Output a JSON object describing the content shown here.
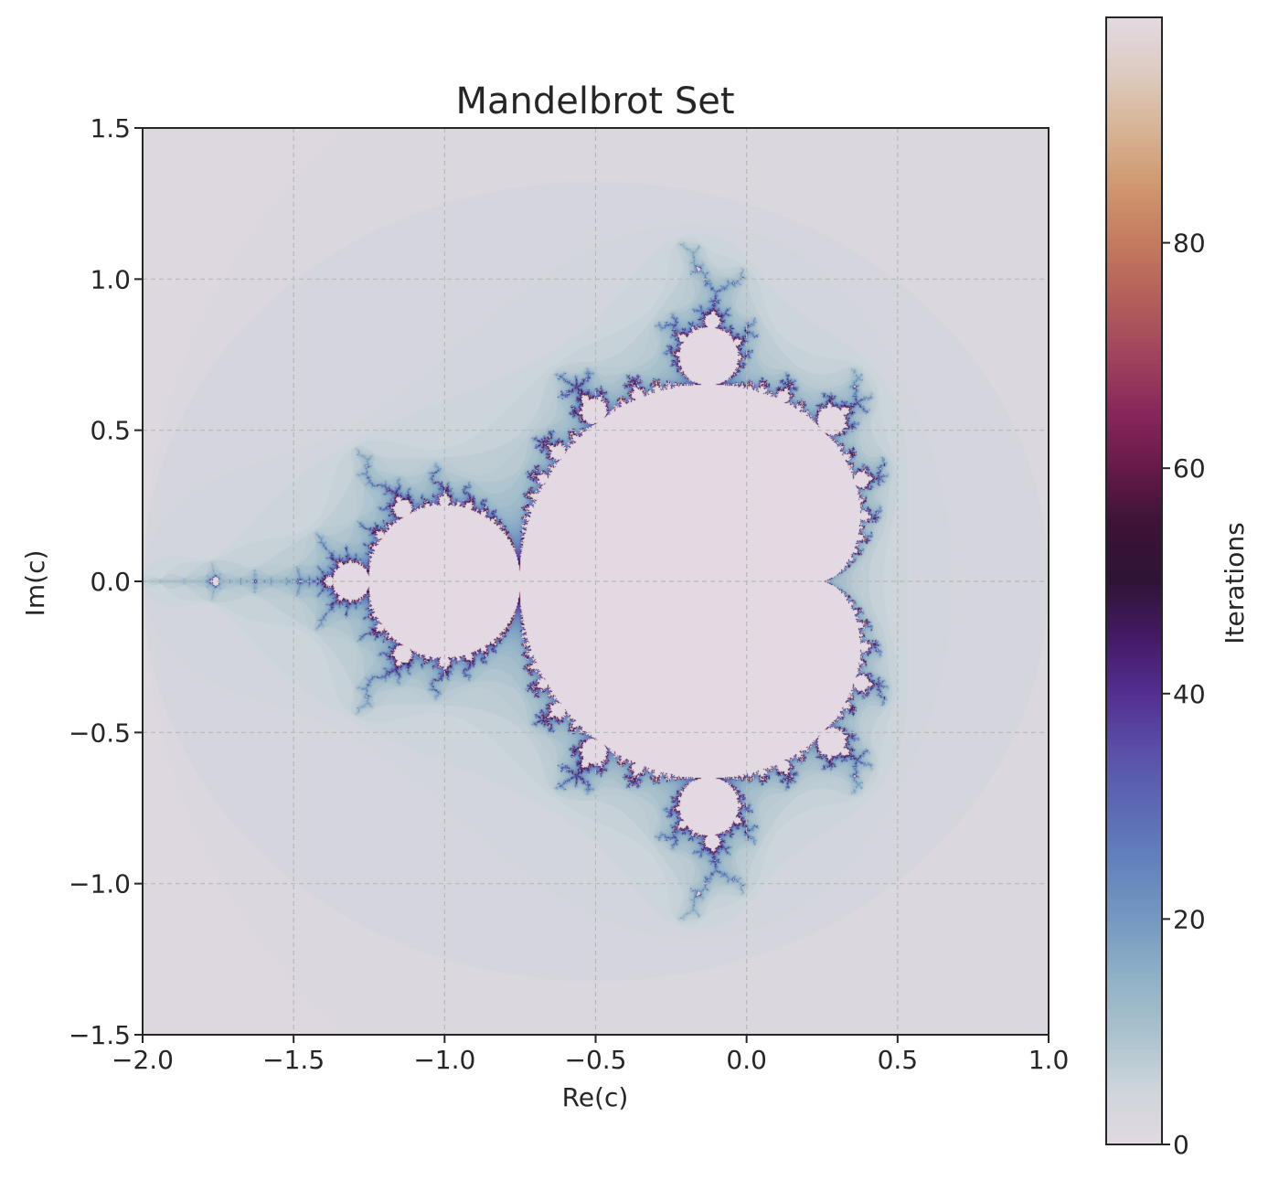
{
  "chart_data": {
    "type": "heatmap",
    "title": "Mandelbrot Set",
    "xlabel": "Re(c)",
    "ylabel": "Im(c)",
    "xlim": [
      -2.0,
      1.0
    ],
    "ylim": [
      -1.5,
      1.5
    ],
    "xticks": [
      {
        "value": -2.0,
        "label": "−2.0"
      },
      {
        "value": -1.5,
        "label": "−1.5"
      },
      {
        "value": -1.0,
        "label": "−1.0"
      },
      {
        "value": -0.5,
        "label": "−0.5"
      },
      {
        "value": 0.0,
        "label": "0.0"
      },
      {
        "value": 0.5,
        "label": "0.5"
      },
      {
        "value": 1.0,
        "label": "1.0"
      }
    ],
    "yticks": [
      {
        "value": -1.5,
        "label": "−1.5"
      },
      {
        "value": -1.0,
        "label": "−1.0"
      },
      {
        "value": -0.5,
        "label": "−0.5"
      },
      {
        "value": 0.0,
        "label": "0.0"
      },
      {
        "value": 0.5,
        "label": "0.5"
      },
      {
        "value": 1.0,
        "label": "1.0"
      },
      {
        "value": 1.5,
        "label": "1.5"
      }
    ],
    "grid": true,
    "max_iterations": 100,
    "colorbar": {
      "label": "Iterations",
      "range": [
        0,
        100
      ],
      "colormap": "twilight",
      "ticks": [
        {
          "value": 0,
          "label": "0"
        },
        {
          "value": 20,
          "label": "20"
        },
        {
          "value": 40,
          "label": "40"
        },
        {
          "value": 60,
          "label": "60"
        },
        {
          "value": 80,
          "label": "80"
        }
      ]
    },
    "colormap_stops": [
      [
        0.0,
        "#e2d9e2"
      ],
      [
        0.05,
        "#cdd5da"
      ],
      [
        0.1,
        "#a9c1cc"
      ],
      [
        0.15,
        "#8fb0c6"
      ],
      [
        0.2,
        "#7499c1"
      ],
      [
        0.25,
        "#6382bd"
      ],
      [
        0.3,
        "#5c69b5"
      ],
      [
        0.35,
        "#5a4fa8"
      ],
      [
        0.4,
        "#532f90"
      ],
      [
        0.45,
        "#441a65"
      ],
      [
        0.5,
        "#2f1436"
      ],
      [
        0.55,
        "#3b1336"
      ],
      [
        0.6,
        "#661a4a"
      ],
      [
        0.65,
        "#88275a"
      ],
      [
        0.7,
        "#a0445e"
      ],
      [
        0.75,
        "#b35f5a"
      ],
      [
        0.8,
        "#c47a5f"
      ],
      [
        0.85,
        "#cf976f"
      ],
      [
        0.9,
        "#d7b394"
      ],
      [
        0.95,
        "#dccbbf"
      ],
      [
        1.0,
        "#e2d9e2"
      ]
    ]
  }
}
